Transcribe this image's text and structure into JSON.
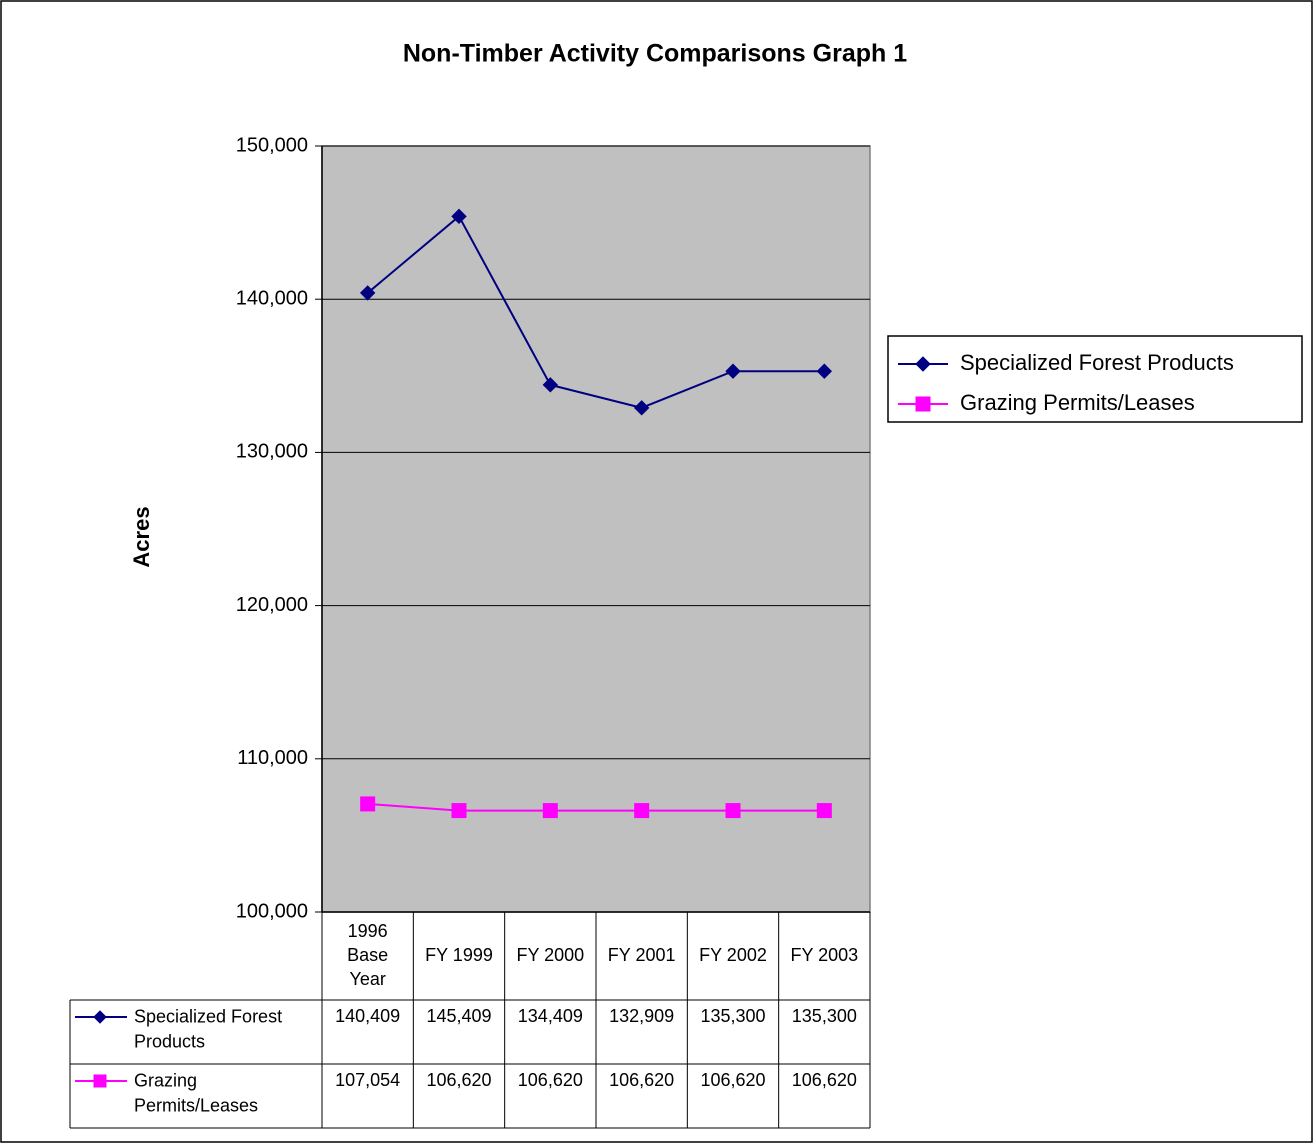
{
  "chart_data": {
    "type": "line",
    "title": "Non-Timber Activity Comparisons Graph 1",
    "y_label": "Acres",
    "categories": [
      "1996 Base Year",
      "FY 1999",
      "FY 2000",
      "FY 2001",
      "FY 2002",
      "FY 2003"
    ],
    "series": [
      {
        "name": "Specialized Forest Products",
        "color": "#000080",
        "marker": "diamond",
        "values": [
          140409,
          145409,
          134409,
          132909,
          135300,
          135300
        ],
        "value_labels": [
          "140,409",
          "145,409",
          "134,409",
          "132,909",
          "135,300",
          "135,300"
        ]
      },
      {
        "name": "Grazing Permits/Leases",
        "color": "#ff00ff",
        "marker": "square",
        "values": [
          107054,
          106620,
          106620,
          106620,
          106620,
          106620
        ],
        "value_labels": [
          "107,054",
          "106,620",
          "106,620",
          "106,620",
          "106,620",
          "106,620"
        ]
      }
    ],
    "ylim": [
      100000,
      150000
    ],
    "yticks": [
      {
        "value": 100000,
        "label": "100,000"
      },
      {
        "value": 110000,
        "label": "110,000"
      },
      {
        "value": 120000,
        "label": "120,000"
      },
      {
        "value": 130000,
        "label": "130,000"
      },
      {
        "value": 140000,
        "label": "140,000"
      },
      {
        "value": 150000,
        "label": "150,000"
      }
    ],
    "grid": true,
    "legend": "right",
    "plot_background": "#c0c0c0",
    "data_table": true
  }
}
